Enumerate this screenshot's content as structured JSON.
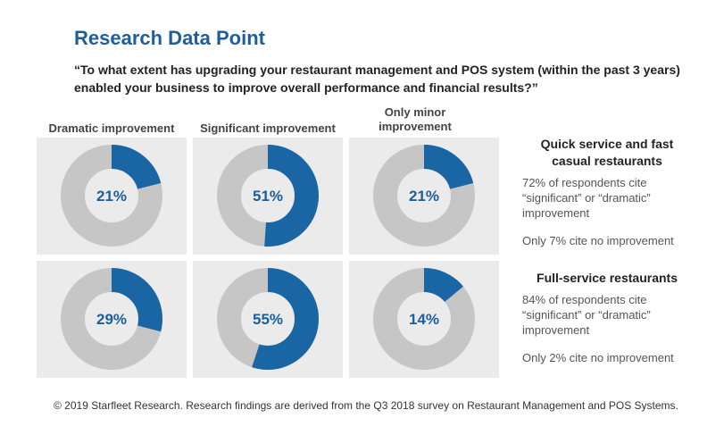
{
  "title": "Research Data Point",
  "question": "“To what extent has upgrading your restaurant management and POS system (within the past 3 years) enabled your business to improve overall performance and financial results?”",
  "columns": [
    "Dramatic improvement",
    "Significant improvement",
    "Only minor improvement"
  ],
  "groups": [
    {
      "title": "Quick service and fast casual restaurants",
      "text1": "72% of respondents cite “significant” or “dramatic” improvement",
      "text2": "Only 7% cite no improvement"
    },
    {
      "title": "Full-service restaurants",
      "text1": "84% of respondents cite “significant” or “dramatic” improvement",
      "text2": "Only 2% cite no improvement"
    }
  ],
  "footer": "© 2019 Starfleet Research. Research findings are derived from the Q3 2018 survey on Restaurant Management and POS Systems.",
  "colors": {
    "accent": "#1e5e9a",
    "donut_fill": "#1a66a4",
    "donut_track": "#c6c6c6",
    "panel_bg": "#ebebeb"
  },
  "chart_data": {
    "type": "pie",
    "categories": [
      "Dramatic improvement",
      "Significant improvement",
      "Only minor improvement"
    ],
    "series": [
      {
        "name": "Quick service and fast casual restaurants",
        "values": [
          21,
          51,
          21
        ],
        "labels": [
          "21%",
          "51%",
          "21%"
        ]
      },
      {
        "name": "Full-service restaurants",
        "values": [
          29,
          55,
          14
        ],
        "labels": [
          "29%",
          "55%",
          "14%"
        ]
      }
    ]
  }
}
